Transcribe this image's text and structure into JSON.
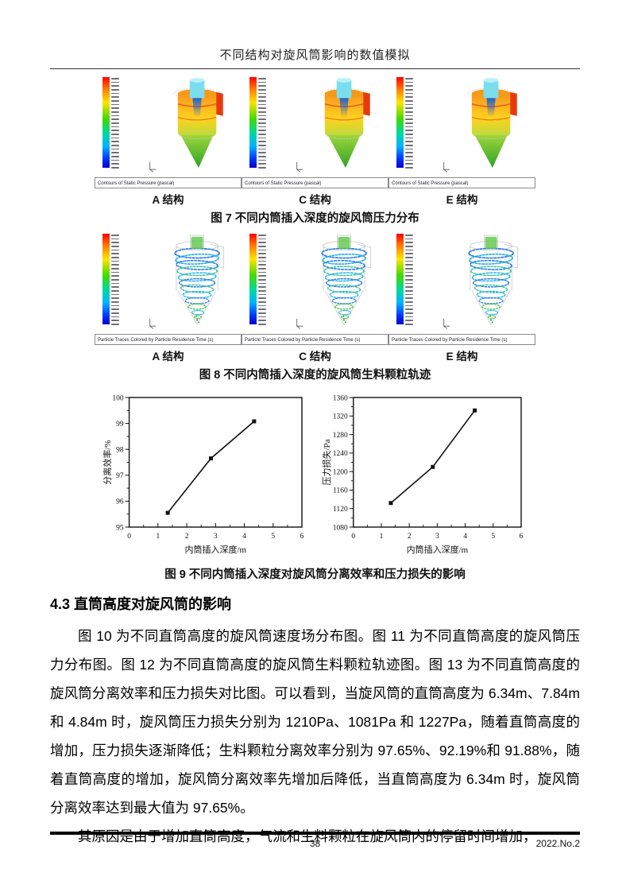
{
  "header": {
    "title": "不同结构对旋风筒影响的数值模拟"
  },
  "figure7": {
    "panel_labels": [
      "A 结构",
      "C 结构",
      "E 结构"
    ],
    "panel_footer": "Contours of Static Pressure (pascal)",
    "caption": "图 7 不同内筒插入深度的旋风筒压力分布"
  },
  "figure8": {
    "panel_labels": [
      "A 结构",
      "C 结构",
      "E 结构"
    ],
    "panel_footer": "Particle Traces Colored by Particle Residence Time (s)",
    "caption": "图 8 不同内筒插入深度的旋风筒生料颗粒轨迹"
  },
  "figure9": {
    "caption": "图 9 不同内筒插入深度对旋风筒分离效率和压力损失的影响"
  },
  "chart_data": [
    {
      "type": "line",
      "x": [
        1.34,
        2.84,
        4.34
      ],
      "y": [
        95.55,
        97.65,
        99.08
      ],
      "xlabel": "内筒插入深度/m",
      "ylabel": "分离效率/%",
      "xlim": [
        0,
        6
      ],
      "ylim": [
        95,
        100
      ],
      "xticks": [
        0,
        1,
        2,
        3,
        4,
        5,
        6
      ],
      "yticks": [
        95,
        96,
        97,
        98,
        99,
        100
      ],
      "x_minor_step": 0.5,
      "y_minor_step": 0.5,
      "marker": "square",
      "color": "#111111",
      "grid": false
    },
    {
      "type": "line",
      "x": [
        1.34,
        2.84,
        4.34
      ],
      "y": [
        1132,
        1210,
        1332
      ],
      "xlabel": "内筒插入深度/m",
      "ylabel": "压力损失/Pa",
      "xlim": [
        0,
        6
      ],
      "ylim": [
        1080,
        1360
      ],
      "xticks": [
        0,
        1,
        2,
        3,
        4,
        5,
        6
      ],
      "yticks": [
        1080,
        1120,
        1160,
        1200,
        1240,
        1280,
        1320,
        1360
      ],
      "x_minor_step": 0.5,
      "y_minor_step": 20,
      "marker": "square",
      "color": "#111111",
      "grid": false
    }
  ],
  "section": {
    "heading": "4.3 直筒高度对旋风筒的影响",
    "paragraphs": [
      "图 10 为不同直筒高度的旋风筒速度场分布图。图 11 为不同直筒高度的旋风筒压力分布图。图 12 为不同直筒高度的旋风筒生料颗粒轨迹图。图 13 为不同直筒高度的旋风筒分离效率和压力损失对比图。可以看到，当旋风筒的直筒高度为 6.34m、7.84m 和 4.84m 时，旋风筒压力损失分别为 1210Pa、1081Pa 和 1227Pa，随着直筒高度的增加，压力损失逐渐降低；生料颗粒分离效率分别为 97.65%、92.19%和 91.88%，随着直筒高度的增加，旋风筒分离效率先增加后降低，当直筒高度为 6.34m 时，旋风筒分离效率达到最大值为 97.65%。",
      "其原因是由于增加直筒高度，气流和生料颗粒在旋风筒内的停留时间增加，"
    ]
  },
  "footer": {
    "page_number": "38",
    "issue": "2022.No.2"
  },
  "colors": {
    "colorbar_top": "#ff0000",
    "colorbar_bottom": "#0000c8",
    "inlet_red": "#e8380d",
    "vortex_tube_cyan": "#7adeef",
    "cone_green": "#3cb52b",
    "trace_blue": "#2d7de0",
    "line_black": "#111111"
  }
}
